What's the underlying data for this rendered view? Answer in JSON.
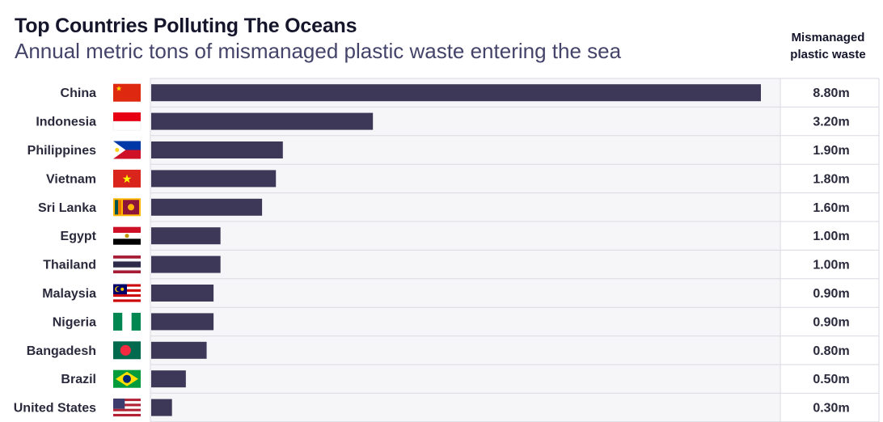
{
  "chart_data": {
    "type": "bar",
    "orientation": "horizontal",
    "title": "Top Countries Polluting The Oceans",
    "subtitle": "Annual metric tons of mismanaged plastic waste entering the sea",
    "value_column_header": [
      "Mismanaged",
      "plastic waste"
    ],
    "unit": "million metric tons",
    "categories": [
      "China",
      "Indonesia",
      "Philippines",
      "Vietnam",
      "Sri Lanka",
      "Egypt",
      "Thailand",
      "Malaysia",
      "Nigeria",
      "Bangadesh",
      "Brazil",
      "United States"
    ],
    "values": [
      8.8,
      3.2,
      1.9,
      1.8,
      1.6,
      1.0,
      1.0,
      0.9,
      0.9,
      0.8,
      0.5,
      0.3
    ],
    "value_labels": [
      "8.80m",
      "3.20m",
      "1.90m",
      "1.80m",
      "1.60m",
      "1.00m",
      "1.00m",
      "0.90m",
      "0.90m",
      "0.80m",
      "0.50m",
      "0.30m"
    ],
    "flags": [
      "china-flag-icon",
      "indonesia-flag-icon",
      "philippines-flag-icon",
      "vietnam-flag-icon",
      "sri-lanka-flag-icon",
      "egypt-flag-icon",
      "thailand-flag-icon",
      "malaysia-flag-icon",
      "nigeria-flag-icon",
      "bangladesh-flag-icon",
      "brazil-flag-icon",
      "united-states-flag-icon"
    ],
    "xlim": [
      0,
      8.8
    ],
    "bar_color": "#3d3857",
    "grid": true,
    "xlabel": "",
    "ylabel": ""
  }
}
